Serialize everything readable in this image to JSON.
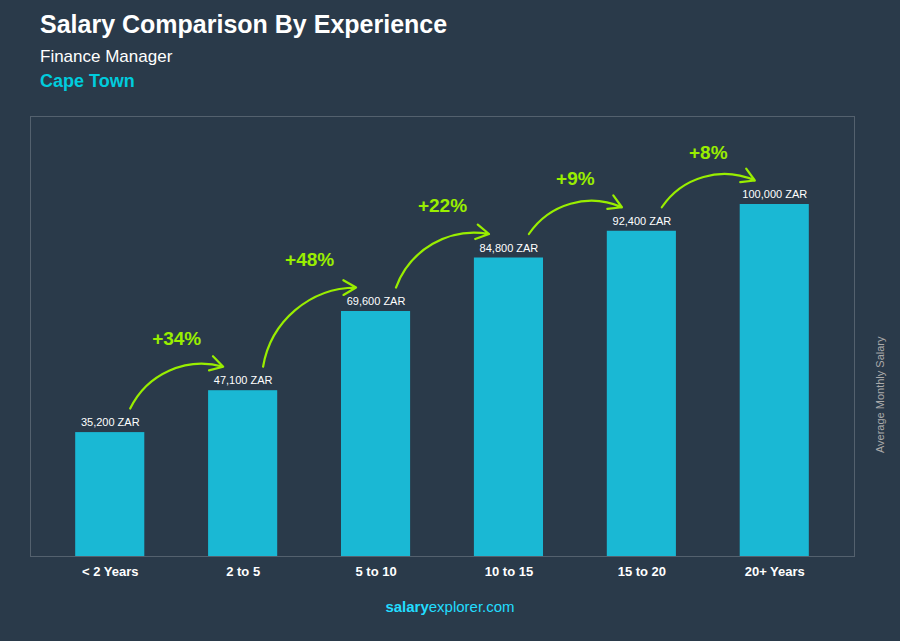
{
  "chart_data": {
    "type": "bar",
    "title": "Salary Comparison By Experience",
    "subtitle": [
      "Finance Manager",
      "Cape Town"
    ],
    "ylabel": "Average Monthly Salary",
    "caption": [
      "salary",
      "explorer.com"
    ],
    "categories": [
      "< 2 Years",
      "2 to 5",
      "5 to 10",
      "10 to 15",
      "15 to 20",
      "20+ Years"
    ],
    "values": [
      35200,
      47100,
      69600,
      84800,
      92400,
      100000
    ],
    "value_labels": [
      "35,200 ZAR",
      "47,100 ZAR",
      "69,600 ZAR",
      "84,800 ZAR",
      "92,400 ZAR",
      "100,000 ZAR"
    ],
    "data_labels": true,
    "color": "#1ab8d4",
    "annotations": [
      {
        "text": "+34%",
        "color": "#99ee00"
      },
      {
        "text": "+48%",
        "color": "#99ee00"
      },
      {
        "text": "+22%",
        "color": "#99ee00"
      },
      {
        "text": "+9%",
        "color": "#99ee00"
      },
      {
        "text": "+8%",
        "color": "#99ee00"
      }
    ],
    "ylim": [
      0,
      125000
    ],
    "tick_labels": "x"
  }
}
